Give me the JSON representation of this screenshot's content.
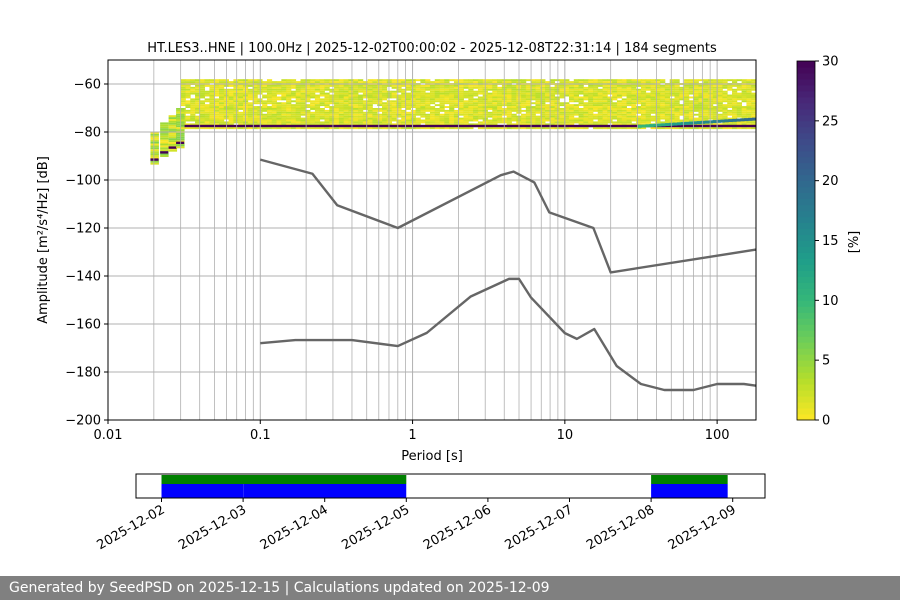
{
  "chart_data": [
    {
      "type": "heatmap",
      "title": "HT.LES3..HNE | 100.0Hz | 2025-12-02T00:00:02 - 2025-12-08T22:31:14 | 184 segments",
      "xlabel": "Period [s]",
      "ylabel": "Amplitude [m²/s⁴/Hz] [dB]",
      "x_scale": "log",
      "xlim": [
        0.01,
        180
      ],
      "ylim": [
        -200,
        -50
      ],
      "x_ticks": [
        0.01,
        0.1,
        1,
        10,
        100
      ],
      "x_tick_labels": [
        "0.01",
        "0.1",
        "1",
        "10",
        "100"
      ],
      "y_ticks": [
        -200,
        -180,
        -160,
        -140,
        -120,
        -100,
        -80,
        -60
      ],
      "y_tick_labels": [
        "−200",
        "−180",
        "−160",
        "−140",
        "−120",
        "−100",
        "−80",
        "−60"
      ],
      "grid": "x-minor-and-major",
      "colorbar": {
        "label": "[%]",
        "colormap": "viridis_r",
        "range": [
          0,
          30
        ],
        "ticks": [
          0,
          5,
          10,
          15,
          20,
          25,
          30
        ]
      },
      "psd_density": {
        "period_start": 0.019,
        "band_start": 0.03,
        "period_end": 180,
        "power_top": -58,
        "power_bottom": -78,
        "peak_line_power": -77,
        "peak_line_percent": 30,
        "onset_points": [
          [
            0.019,
            -80,
            -93
          ],
          [
            0.022,
            -76,
            -90
          ],
          [
            0.025,
            -73,
            -88
          ],
          [
            0.028,
            -70,
            -86
          ]
        ]
      },
      "noise_models": [
        {
          "name": "upper",
          "points": [
            [
              0.1,
              -91.5
            ],
            [
              0.22,
              -97.4
            ],
            [
              0.32,
              -110.5
            ],
            [
              0.8,
              -120
            ],
            [
              3.8,
              -98
            ],
            [
              4.6,
              -96.5
            ],
            [
              6.3,
              -101
            ],
            [
              7.9,
              -113.5
            ],
            [
              15.4,
              -120
            ],
            [
              20,
              -138.5
            ],
            [
              180,
              -129
            ]
          ]
        },
        {
          "name": "lower",
          "points": [
            [
              0.1,
              -168
            ],
            [
              0.17,
              -166.7
            ],
            [
              0.4,
              -166.7
            ],
            [
              0.8,
              -169.2
            ],
            [
              1.24,
              -163.7
            ],
            [
              2.4,
              -148.6
            ],
            [
              4.3,
              -141.2
            ],
            [
              5,
              -141.2
            ],
            [
              6,
              -149
            ],
            [
              10,
              -163.8
            ],
            [
              12,
              -166.2
            ],
            [
              15.6,
              -162.1
            ],
            [
              21.9,
              -177.5
            ],
            [
              31.6,
              -185
            ],
            [
              45,
              -187.5
            ],
            [
              70,
              -187.5
            ],
            [
              100,
              -185
            ],
            [
              150,
              -185
            ],
            [
              180,
              -185.7
            ]
          ]
        }
      ]
    },
    {
      "type": "timeline",
      "x_tick_labels": [
        "2025-12-02",
        "2025-12-03",
        "2025-12-04",
        "2025-12-05",
        "2025-12-06",
        "2025-12-07",
        "2025-12-08",
        "2025-12-09"
      ],
      "xlim": [
        "2025-12-01T16:30:00",
        "2025-12-09T09:30:00"
      ],
      "data_spans": [
        {
          "start": "2025-12-02T00:00:02",
          "end": "2025-12-05T00:00:00",
          "color": "#008000"
        },
        {
          "start": "2025-12-08T00:00:00",
          "end": "2025-12-08T22:31:14",
          "color": "#008000"
        }
      ],
      "psd_spans": [
        {
          "start": "2025-12-02T00:00:02",
          "end": "2025-12-02T23:59:00",
          "color": "#0000ff"
        },
        {
          "start": "2025-12-03T00:01:00",
          "end": "2025-12-04T23:59:00",
          "color": "#0000ff"
        },
        {
          "start": "2025-12-08T00:00:00",
          "end": "2025-12-08T22:31:14",
          "color": "#0000ff"
        }
      ]
    }
  ],
  "footer": {
    "text": "Generated by SeedPSD on 2025-12-15 | Calculations updated on 2025-12-09"
  }
}
